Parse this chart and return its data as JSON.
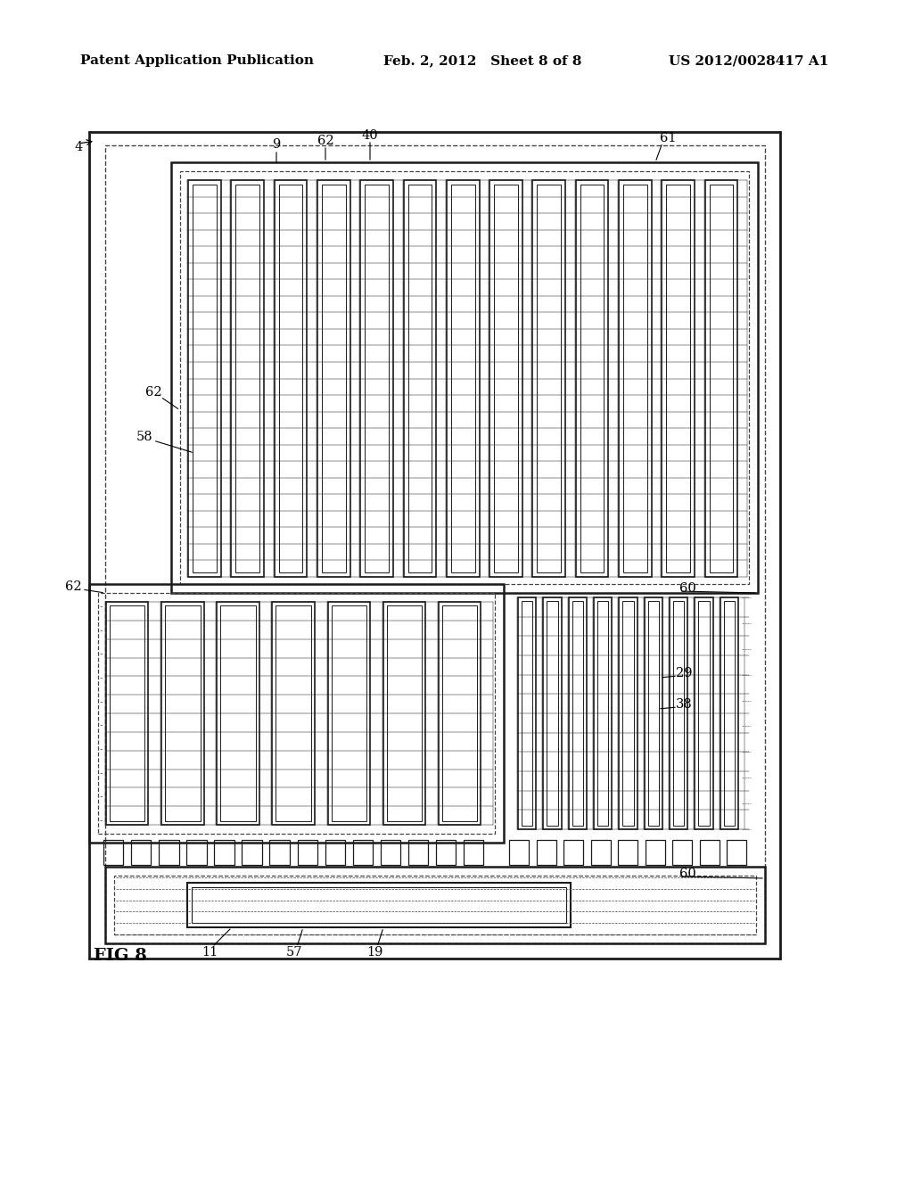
{
  "title_left": "Patent Application Publication",
  "title_mid": "Feb. 2, 2012   Sheet 8 of 8",
  "title_right": "US 2012/0028417 A1",
  "fig_label": "FIG 8",
  "background_color": "#ffffff",
  "line_color": "#1a1a1a",
  "dashed_color": "#444444",
  "header_fontsize": 11,
  "label_fontsize": 10.5,
  "fig_label_fontsize": 14
}
